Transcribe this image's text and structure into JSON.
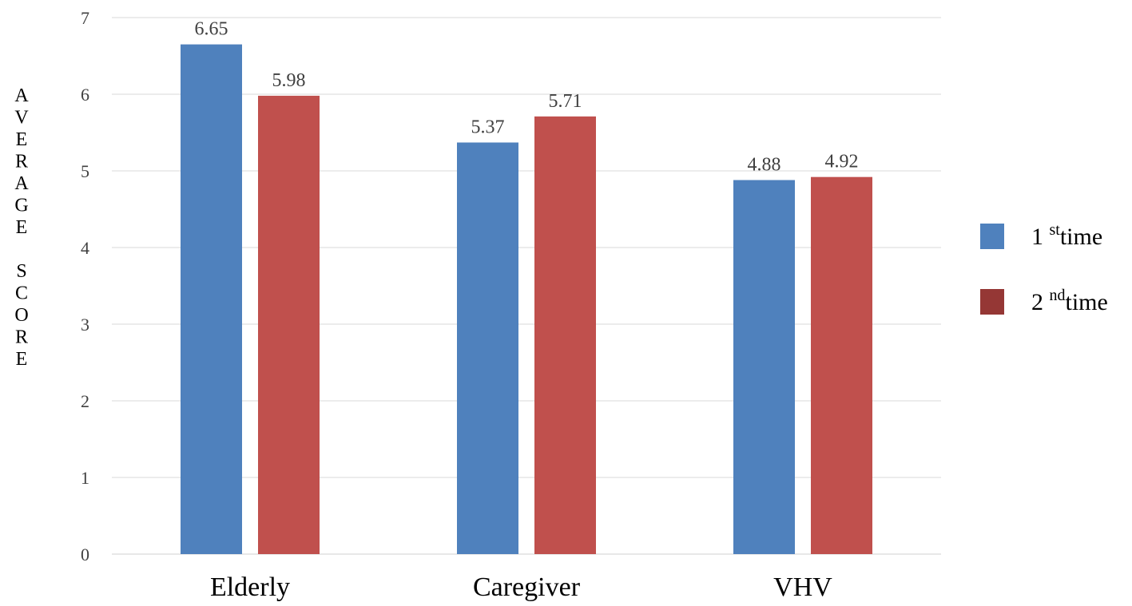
{
  "chart_data": {
    "type": "bar",
    "title": "",
    "xlabel": "",
    "ylabel": "AVERAGE SCORE",
    "ylim": [
      0,
      7
    ],
    "yticks": [
      "0",
      "1",
      "2",
      "3",
      "4",
      "5",
      "6",
      "7"
    ],
    "grid": true,
    "legend_position": "right",
    "categories": [
      "Elderly",
      "Caregiver",
      "VHV"
    ],
    "series": [
      {
        "name": "1st time",
        "legend_main": "1",
        "legend_sup": "st",
        "legend_rest": "time",
        "color": "#4f81bd",
        "legend_color": "#4f81bd",
        "values": [
          6.65,
          5.37,
          4.88
        ],
        "labels": [
          "6.65",
          "5.37",
          "4.88"
        ]
      },
      {
        "name": "2nd time",
        "legend_main": "2",
        "legend_sup": "nd",
        "legend_rest": "time",
        "color": "#c0504d",
        "legend_color": "#953735",
        "values": [
          5.98,
          5.71,
          4.92
        ],
        "labels": [
          "5.98",
          "5.71",
          "4.92"
        ]
      }
    ]
  }
}
